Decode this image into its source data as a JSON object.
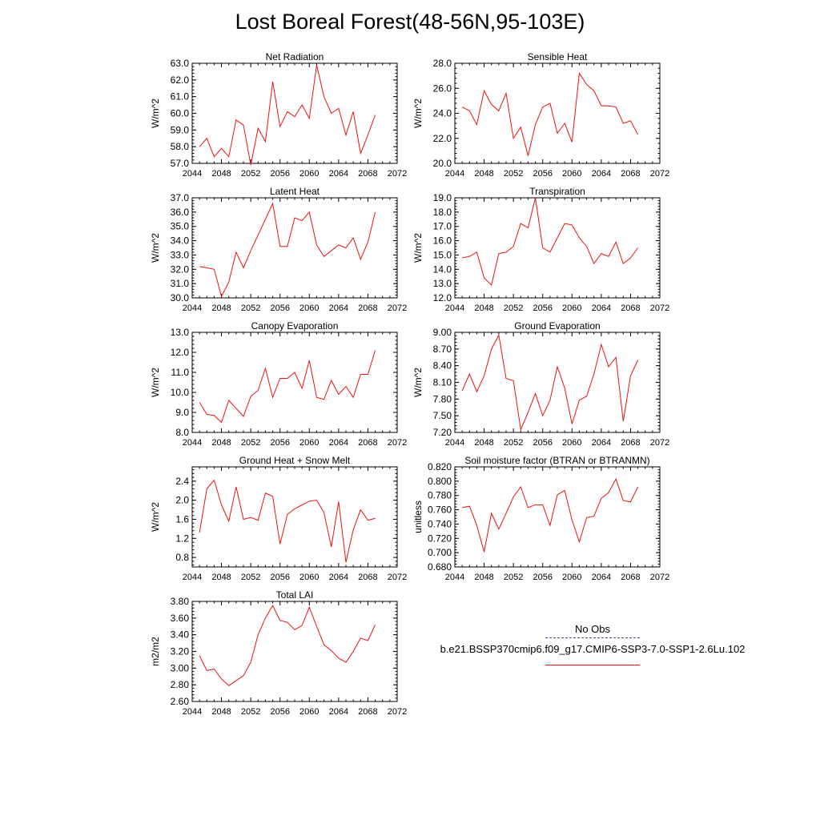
{
  "figure": {
    "title": "Lost Boreal Forest(48-56N,95-103E)"
  },
  "colors": {
    "model": "#ee1111",
    "obs": "#4a4aa8"
  },
  "legend": {
    "items": [
      {
        "label": "No Obs",
        "style": "dashed",
        "color": "#4a4aa8"
      },
      {
        "label": "b.e21.BSSP370cmip6.f09_g17.CMIP6-SSP3-7.0-SSP1-2.6Lu.102",
        "style": "solid",
        "color": "#ee1111"
      }
    ]
  },
  "chart_data": [
    {
      "type": "line",
      "title": "Net Radiation",
      "ylabel": "W/m^2",
      "xlim": [
        2044,
        2072
      ],
      "xticks": [
        2044,
        2048,
        2052,
        2056,
        2060,
        2064,
        2068,
        2072
      ],
      "ylim": [
        57,
        63
      ],
      "yticks": [
        "57.0",
        "58.0",
        "59.0",
        "60.0",
        "61.0",
        "62.0",
        "63.0"
      ],
      "series": [
        {
          "x": [
            2045,
            2046,
            2047,
            2048,
            2049,
            2050,
            2051,
            2052,
            2053,
            2054,
            2055,
            2056,
            2057,
            2058,
            2059,
            2060,
            2061,
            2062,
            2063,
            2064,
            2065,
            2066,
            2067,
            2068,
            2069
          ],
          "values": [
            58.0,
            58.5,
            57.4,
            57.9,
            57.4,
            59.6,
            59.3,
            56.9,
            59.1,
            58.3,
            61.9,
            59.2,
            60.1,
            59.8,
            60.5,
            59.7,
            62.9,
            61.0,
            60.0,
            60.3,
            58.7,
            60.1,
            57.6,
            58.7,
            59.9
          ]
        }
      ]
    },
    {
      "type": "line",
      "title": "Sensible Heat",
      "ylabel": "W/m^2",
      "xlim": [
        2044,
        2072
      ],
      "xticks": [
        2044,
        2048,
        2052,
        2056,
        2060,
        2064,
        2068,
        2072
      ],
      "ylim": [
        20,
        28
      ],
      "yticks": [
        "20.0",
        "22.0",
        "24.0",
        "26.0",
        "28.0"
      ],
      "series": [
        {
          "x": [
            2045,
            2046,
            2047,
            2048,
            2049,
            2050,
            2051,
            2052,
            2053,
            2054,
            2055,
            2056,
            2057,
            2058,
            2059,
            2060,
            2061,
            2062,
            2063,
            2064,
            2065,
            2066,
            2067,
            2068,
            2069
          ],
          "values": [
            24.5,
            24.2,
            23.1,
            25.8,
            24.7,
            24.2,
            25.6,
            22.0,
            22.9,
            20.6,
            23.1,
            24.5,
            24.8,
            22.4,
            23.2,
            21.7,
            27.2,
            26.3,
            25.8,
            24.6,
            24.6,
            24.5,
            23.2,
            23.4,
            22.3
          ]
        }
      ]
    },
    {
      "type": "line",
      "title": "Latent Heat",
      "ylabel": "W/m^2",
      "xlim": [
        2044,
        2072
      ],
      "xticks": [
        2044,
        2048,
        2052,
        2056,
        2060,
        2064,
        2068,
        2072
      ],
      "ylim": [
        30,
        37
      ],
      "yticks": [
        "30.0",
        "31.0",
        "32.0",
        "33.0",
        "34.0",
        "35.0",
        "36.0",
        "37.0"
      ],
      "series": [
        {
          "x": [
            2045,
            2046,
            2047,
            2048,
            2049,
            2050,
            2051,
            2052,
            2053,
            2054,
            2055,
            2056,
            2057,
            2058,
            2059,
            2060,
            2061,
            2062,
            2063,
            2064,
            2065,
            2066,
            2067,
            2068,
            2069
          ],
          "values": [
            32.2,
            32.1,
            32.0,
            30.1,
            31.1,
            33.2,
            32.1,
            33.3,
            34.4,
            35.5,
            36.6,
            33.6,
            33.6,
            35.6,
            35.4,
            36.0,
            33.7,
            32.9,
            33.3,
            33.7,
            33.5,
            34.2,
            32.7,
            33.9,
            36.0
          ]
        }
      ]
    },
    {
      "type": "line",
      "title": "Transpiration",
      "ylabel": "W/m^2",
      "xlim": [
        2044,
        2072
      ],
      "xticks": [
        2044,
        2048,
        2052,
        2056,
        2060,
        2064,
        2068,
        2072
      ],
      "ylim": [
        12,
        19
      ],
      "yticks": [
        "12.0",
        "13.0",
        "14.0",
        "15.0",
        "16.0",
        "17.0",
        "18.0",
        "19.0"
      ],
      "series": [
        {
          "x": [
            2045,
            2046,
            2047,
            2048,
            2049,
            2050,
            2051,
            2052,
            2053,
            2054,
            2055,
            2056,
            2057,
            2058,
            2059,
            2060,
            2061,
            2062,
            2063,
            2064,
            2065,
            2066,
            2067,
            2068,
            2069
          ],
          "values": [
            14.8,
            14.9,
            15.2,
            13.4,
            12.9,
            15.1,
            15.2,
            15.6,
            17.2,
            16.9,
            19.0,
            15.5,
            15.2,
            16.2,
            17.2,
            17.1,
            16.2,
            15.6,
            14.4,
            15.1,
            14.9,
            15.9,
            14.4,
            14.8,
            15.5
          ]
        }
      ]
    },
    {
      "type": "line",
      "title": "Canopy Evaporation",
      "ylabel": "W/m^2",
      "xlim": [
        2044,
        2072
      ],
      "xticks": [
        2044,
        2048,
        2052,
        2056,
        2060,
        2064,
        2068,
        2072
      ],
      "ylim": [
        8,
        13
      ],
      "yticks": [
        "8.0",
        "9.0",
        "10.0",
        "11.0",
        "12.0",
        "13.0"
      ],
      "series": [
        {
          "x": [
            2045,
            2046,
            2047,
            2048,
            2049,
            2050,
            2051,
            2052,
            2053,
            2054,
            2055,
            2056,
            2057,
            2058,
            2059,
            2060,
            2061,
            2062,
            2063,
            2064,
            2065,
            2066,
            2067,
            2068,
            2069
          ],
          "values": [
            9.5,
            8.9,
            8.85,
            8.5,
            9.6,
            9.2,
            8.8,
            9.8,
            10.1,
            11.2,
            9.75,
            10.7,
            10.7,
            11.0,
            10.2,
            11.6,
            9.75,
            9.65,
            10.6,
            9.9,
            10.3,
            9.75,
            10.9,
            10.9,
            12.1
          ]
        }
      ]
    },
    {
      "type": "line",
      "title": "Ground Evaporation",
      "ylabel": "W/m^2",
      "xlim": [
        2044,
        2072
      ],
      "xticks": [
        2044,
        2048,
        2052,
        2056,
        2060,
        2064,
        2068,
        2072
      ],
      "ylim": [
        7.2,
        9.0
      ],
      "yticks": [
        "7.20",
        "7.50",
        "7.80",
        "8.10",
        "8.40",
        "8.70",
        "9.00"
      ],
      "series": [
        {
          "x": [
            2045,
            2046,
            2047,
            2048,
            2049,
            2050,
            2051,
            2052,
            2053,
            2054,
            2055,
            2056,
            2057,
            2058,
            2059,
            2060,
            2061,
            2062,
            2063,
            2064,
            2065,
            2066,
            2067,
            2068,
            2069
          ],
          "values": [
            7.95,
            8.25,
            7.93,
            8.22,
            8.7,
            8.95,
            8.17,
            8.13,
            7.25,
            7.56,
            7.9,
            7.5,
            7.78,
            8.38,
            8.0,
            7.35,
            7.78,
            7.85,
            8.25,
            8.78,
            8.38,
            8.55,
            7.4,
            8.22,
            8.5
          ]
        }
      ]
    },
    {
      "type": "line",
      "title": "Ground Heat + Snow Melt",
      "ylabel": "W/m^2",
      "xlim": [
        2044,
        2072
      ],
      "xticks": [
        2044,
        2048,
        2052,
        2056,
        2060,
        2064,
        2068,
        2072
      ],
      "ylim": [
        0.6,
        2.7
      ],
      "yticks": [
        "0.8",
        "1.2",
        "1.6",
        "2.0",
        "2.4"
      ],
      "series": [
        {
          "x": [
            2045,
            2046,
            2047,
            2048,
            2049,
            2050,
            2051,
            2052,
            2053,
            2054,
            2055,
            2056,
            2057,
            2058,
            2059,
            2060,
            2061,
            2062,
            2063,
            2064,
            2065,
            2066,
            2067,
            2068,
            2069
          ],
          "values": [
            1.32,
            2.24,
            2.42,
            1.9,
            1.56,
            2.28,
            1.6,
            1.64,
            1.58,
            2.15,
            2.08,
            1.08,
            1.7,
            1.82,
            1.9,
            1.98,
            2.0,
            1.74,
            1.02,
            1.97,
            0.7,
            1.38,
            1.8,
            1.58,
            1.62
          ]
        }
      ]
    },
    {
      "type": "line",
      "title": "Soil moisture factor (BTRAN or BTRANMN)",
      "ylabel": "unitless",
      "xlim": [
        2044,
        2072
      ],
      "xticks": [
        2044,
        2048,
        2052,
        2056,
        2060,
        2064,
        2068,
        2072
      ],
      "ylim": [
        0.68,
        0.82
      ],
      "yticks": [
        "0.680",
        "0.700",
        "0.720",
        "0.740",
        "0.760",
        "0.780",
        "0.800",
        "0.820"
      ],
      "series": [
        {
          "x": [
            2045,
            2046,
            2047,
            2048,
            2049,
            2050,
            2051,
            2052,
            2053,
            2054,
            2055,
            2056,
            2057,
            2058,
            2059,
            2060,
            2061,
            2062,
            2063,
            2064,
            2065,
            2066,
            2067,
            2068,
            2069
          ],
          "values": [
            0.763,
            0.765,
            0.738,
            0.701,
            0.755,
            0.733,
            0.755,
            0.778,
            0.792,
            0.763,
            0.767,
            0.767,
            0.738,
            0.781,
            0.787,
            0.746,
            0.715,
            0.749,
            0.751,
            0.776,
            0.784,
            0.803,
            0.773,
            0.771,
            0.792
          ]
        }
      ]
    },
    {
      "type": "line",
      "title": "Total LAI",
      "ylabel": "m2/m2",
      "xlim": [
        2044,
        2072
      ],
      "xticks": [
        2044,
        2048,
        2052,
        2056,
        2060,
        2064,
        2068,
        2072
      ],
      "ylim": [
        2.6,
        3.8
      ],
      "yticks": [
        "2.60",
        "2.80",
        "3.00",
        "3.20",
        "3.40",
        "3.60",
        "3.80"
      ],
      "series": [
        {
          "x": [
            2045,
            2046,
            2047,
            2048,
            2049,
            2050,
            2051,
            2052,
            2053,
            2054,
            2055,
            2056,
            2057,
            2058,
            2059,
            2060,
            2061,
            2062,
            2063,
            2064,
            2065,
            2066,
            2067,
            2068,
            2069
          ],
          "values": [
            3.15,
            2.97,
            2.99,
            2.87,
            2.79,
            2.85,
            2.91,
            3.07,
            3.4,
            3.6,
            3.75,
            3.57,
            3.55,
            3.46,
            3.51,
            3.73,
            3.5,
            3.28,
            3.21,
            3.12,
            3.07,
            3.2,
            3.36,
            3.33,
            3.52
          ]
        }
      ]
    }
  ]
}
